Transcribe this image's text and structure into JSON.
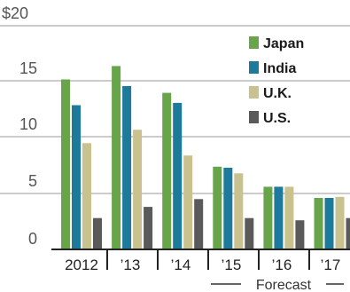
{
  "chart_data": {
    "type": "bar",
    "categories": [
      "2012",
      "’13",
      "’14",
      "’15",
      "’16",
      "’17"
    ],
    "series": [
      {
        "name": "Japan",
        "values": [
          15.2,
          16.4,
          14.0,
          7.4,
          5.6,
          4.6
        ]
      },
      {
        "name": "India",
        "values": [
          12.9,
          14.6,
          13.1,
          7.3,
          5.6,
          4.6
        ]
      },
      {
        "name": "U.K.",
        "values": [
          9.5,
          10.7,
          8.4,
          6.8,
          5.6,
          4.7
        ]
      },
      {
        "name": "U.S.",
        "values": [
          2.8,
          3.8,
          4.5,
          2.8,
          2.6,
          2.8
        ]
      }
    ],
    "ylim": [
      0,
      20
    ],
    "y_ticks": [
      "$20",
      "15",
      "10",
      "5",
      "0"
    ],
    "legend_position": "top-right",
    "grid": "horizontal",
    "annotation": "Forecast"
  },
  "colors": {
    "Japan": "#68a54a",
    "India": "#1d7a9a",
    "U.K.": "#c9c28f",
    "U.S.": "#5a5a5a",
    "grid": "#9a9a9a",
    "axis": "#222222"
  }
}
